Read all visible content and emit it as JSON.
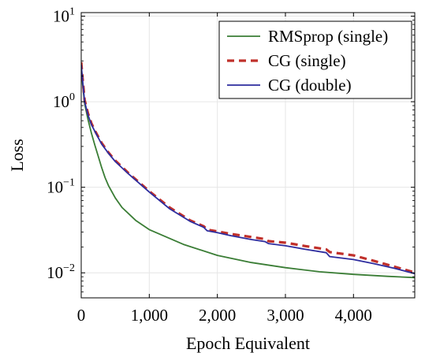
{
  "chart_data": {
    "type": "line",
    "title": "",
    "xlabel": "Epoch Equivalent",
    "ylabel": "Loss",
    "x_ticks": [
      0,
      1000,
      2000,
      3000,
      4000
    ],
    "x_tick_labels": [
      "0",
      "1,000",
      "2,000",
      "3,000",
      "4,000"
    ],
    "y_ticks": [
      0.01,
      0.1,
      1,
      10
    ],
    "y_tick_labels": [
      {
        "base": "10",
        "exp": "−2"
      },
      {
        "base": "10",
        "exp": "−1"
      },
      {
        "base": "10",
        "exp": "0"
      },
      {
        "base": "10",
        "exp": "1"
      }
    ],
    "xlim": [
      0,
      4900
    ],
    "ylim": [
      0.0051,
      11
    ],
    "y_scale": "log",
    "grid": true,
    "legend_position": "top-right",
    "series": [
      {
        "name": "RMSprop (single)",
        "color": "#3a7d35",
        "style": "solid",
        "x": [
          0,
          20,
          50,
          100,
          150,
          200,
          250,
          300,
          350,
          400,
          500,
          600,
          800,
          1000,
          1500,
          2000,
          2500,
          3000,
          3500,
          4000,
          4500,
          4900
        ],
        "y": [
          2.7,
          1.6,
          0.95,
          0.62,
          0.43,
          0.31,
          0.23,
          0.17,
          0.13,
          0.105,
          0.075,
          0.058,
          0.041,
          0.032,
          0.0215,
          0.016,
          0.0132,
          0.0115,
          0.0103,
          0.0096,
          0.0091,
          0.0088
        ]
      },
      {
        "name": "CG (single)",
        "color": "#c0302b",
        "style": "dashed",
        "x": [
          0,
          20,
          50,
          100,
          150,
          200,
          300,
          400,
          500,
          700,
          1000,
          1300,
          1600,
          1800,
          1850,
          2000,
          2200,
          2500,
          2700,
          2750,
          3000,
          3300,
          3600,
          3650,
          4000,
          4300,
          4600,
          4900
        ],
        "y": [
          2.9,
          1.9,
          1.05,
          0.73,
          0.56,
          0.46,
          0.33,
          0.255,
          0.205,
          0.145,
          0.09,
          0.058,
          0.041,
          0.035,
          0.032,
          0.0305,
          0.0285,
          0.0262,
          0.0248,
          0.0235,
          0.0225,
          0.0205,
          0.0188,
          0.0175,
          0.016,
          0.0138,
          0.0118,
          0.0101
        ]
      },
      {
        "name": "CG (double)",
        "color": "#2d2c9e",
        "style": "solid",
        "x": [
          0,
          20,
          50,
          100,
          150,
          200,
          300,
          400,
          500,
          700,
          1000,
          1300,
          1600,
          1800,
          1850,
          2000,
          2200,
          2500,
          2700,
          2750,
          3000,
          3300,
          3600,
          3650,
          4000,
          4300,
          4600,
          4900
        ],
        "y": [
          2.7,
          1.8,
          1.0,
          0.7,
          0.54,
          0.45,
          0.32,
          0.25,
          0.2,
          0.142,
          0.088,
          0.056,
          0.04,
          0.034,
          0.031,
          0.0295,
          0.0272,
          0.0245,
          0.0232,
          0.022,
          0.0207,
          0.0188,
          0.0172,
          0.0155,
          0.0143,
          0.0128,
          0.0113,
          0.0098
        ]
      }
    ]
  }
}
